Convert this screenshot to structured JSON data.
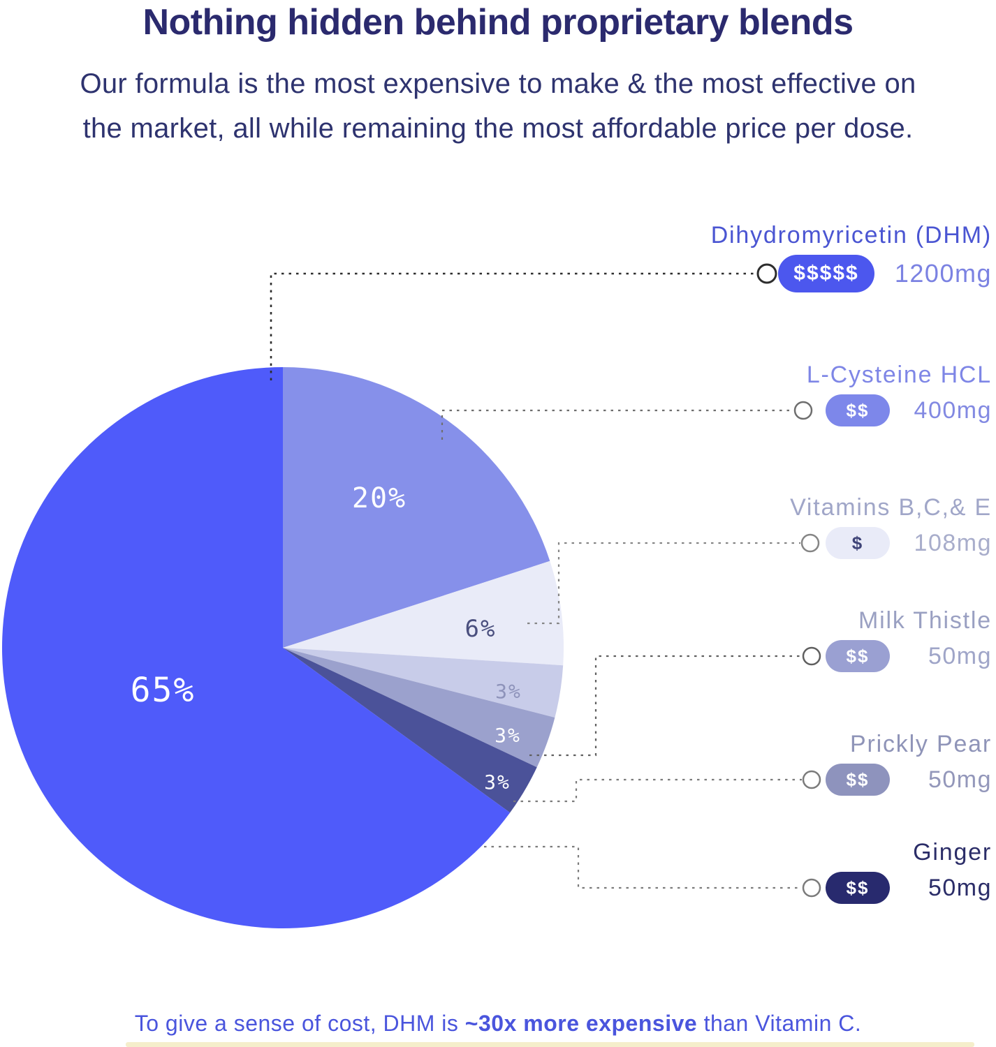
{
  "header": {
    "title": "Nothing hidden behind proprietary blends",
    "subtitle_lines": [
      "Our formula is the most expensive to make & the most effective on",
      "the market, all while remaining the most affordable price per dose."
    ]
  },
  "chart_data": {
    "type": "pie",
    "start_angle_deg": 0,
    "clockwise": true,
    "legend_position": "right",
    "slices": [
      {
        "label": "L-Cysteine HCL",
        "value": 20,
        "pct_label": "20%",
        "color": "#8690ea",
        "pct_text_color": "#ffffff"
      },
      {
        "label": "Vitamins B,C,& E",
        "value": 6,
        "pct_label": "6%",
        "color": "#e9ebf8",
        "pct_text_color": "#4a4f7e"
      },
      {
        "label": "Milk Thistle",
        "value": 3,
        "pct_label": "3%",
        "color": "#c8cce9",
        "pct_text_color": "#8e93ba"
      },
      {
        "label": "Prickly Pear",
        "value": 3,
        "pct_label": "3%",
        "color": "#9ba1cd",
        "pct_text_color": "#ffffff"
      },
      {
        "label": "Ginger",
        "value": 3,
        "pct_label": "3%",
        "color": "#4b5299",
        "pct_text_color": "#ffffff"
      },
      {
        "label": "Dihydromyricetin (DHM)",
        "value": 65,
        "pct_label": "65%",
        "color": "#4f5bfa",
        "pct_text_color": "#ffffff"
      }
    ]
  },
  "legend": {
    "items": [
      {
        "name": "Dihydromyricetin (DHM)",
        "cost": "$$$$$",
        "dose": "1200mg",
        "pill_bg": "#4c57ee",
        "pill_text": "#ffffff",
        "label_color": "#4a55d2",
        "value_color": "#7b82e2"
      },
      {
        "name": "L-Cysteine HCL",
        "cost": "$$",
        "dose": "400mg",
        "pill_bg": "#7d87ea",
        "pill_text": "#ffffff",
        "label_color": "#7e86e6",
        "value_color": "#8289e2"
      },
      {
        "name": "Vitamins B,C,& E",
        "cost": "$",
        "dose": "108mg",
        "pill_bg": "#e9ebf8",
        "pill_text": "#3f4478",
        "label_color": "#a0a6c8",
        "value_color": "#a8adcb"
      },
      {
        "name": "Milk Thistle",
        "cost": "$$",
        "dose": "50mg",
        "pill_bg": "#9aa0d2",
        "pill_text": "#ffffff",
        "label_color": "#9aa0c2",
        "value_color": "#9fa5c8"
      },
      {
        "name": "Prickly Pear",
        "cost": "$$",
        "dose": "50mg",
        "pill_bg": "#8e93bd",
        "pill_text": "#ffffff",
        "label_color": "#8f94b8",
        "value_color": "#9397ba"
      },
      {
        "name": "Ginger",
        "cost": "$$",
        "dose": "50mg",
        "pill_bg": "#282a6e",
        "pill_text": "#ffffff",
        "label_color": "#2b2d68",
        "value_color": "#2b2d68"
      }
    ]
  },
  "footer": {
    "prefix": "To give a sense of cost, DHM is ",
    "bold": "~30x more expensive",
    "suffix": " than Vitamin C."
  }
}
